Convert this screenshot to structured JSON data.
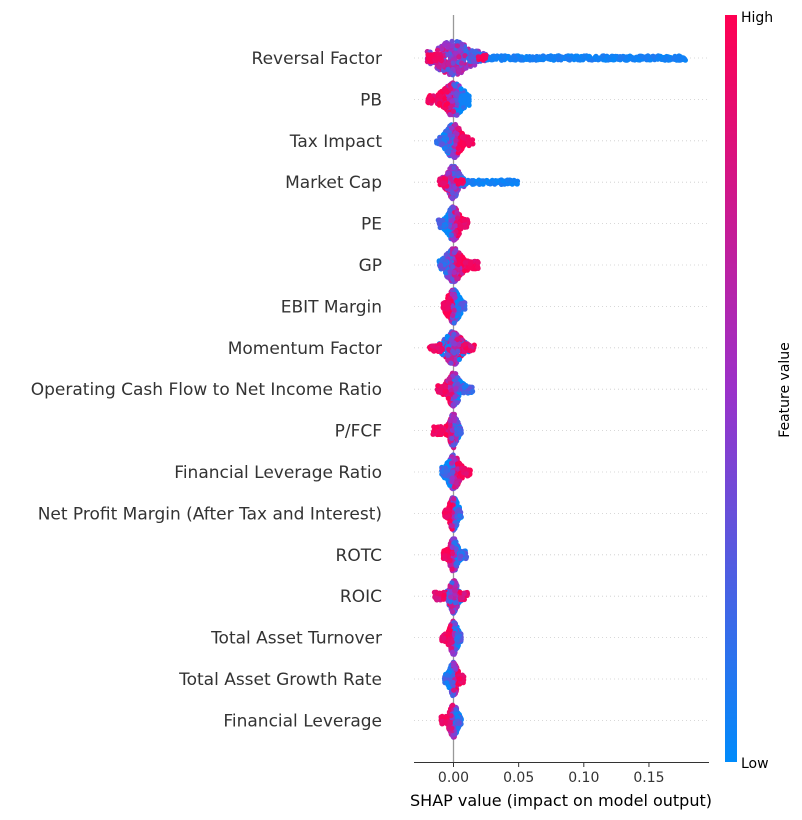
{
  "chart_data": {
    "type": "scatter",
    "subtype": "shap-beeswarm",
    "xlabel": "SHAP value (impact on model output)",
    "xlim": [
      -0.029,
      0.188
    ],
    "xticks": [
      0.0,
      0.05,
      0.1,
      0.15
    ],
    "xtick_labels": [
      "0.00",
      "0.05",
      "0.10",
      "0.15"
    ],
    "zero_line": true,
    "row_gridlines": "dotted",
    "colorbar": {
      "label": "Feature value",
      "high_label": "High",
      "low_label": "Low",
      "low_color": "#008bfb",
      "mid_color": "#9b31c9",
      "high_color": "#ff0052"
    },
    "features": [
      {
        "name": "Reversal Factor",
        "min": -0.02,
        "max": 0.178,
        "core_width": 0.018,
        "low_tail": [
          0.025,
          0.178
        ],
        "high_side": "left"
      },
      {
        "name": "PB",
        "min": -0.02,
        "max": 0.012,
        "core_width": 0.01,
        "low_tail": null,
        "high_side": "left"
      },
      {
        "name": "Tax Impact",
        "min": -0.013,
        "max": 0.015,
        "core_width": 0.008,
        "low_tail": null,
        "high_side": "right"
      },
      {
        "name": "Market Cap",
        "min": -0.011,
        "max": 0.051,
        "core_width": 0.006,
        "low_tail": [
          0.008,
          0.051
        ],
        "high_side": "left"
      },
      {
        "name": "PE",
        "min": -0.012,
        "max": 0.011,
        "core_width": 0.006,
        "low_tail": null,
        "high_side": "right"
      },
      {
        "name": "GP",
        "min": -0.011,
        "max": 0.019,
        "core_width": 0.008,
        "low_tail": null,
        "high_side": "right"
      },
      {
        "name": "EBIT Margin",
        "min": -0.008,
        "max": 0.009,
        "core_width": 0.006,
        "low_tail": null,
        "high_side": "left"
      },
      {
        "name": "Momentum Factor",
        "min": -0.019,
        "max": 0.016,
        "core_width": 0.008,
        "low_tail": null,
        "high_side": "both"
      },
      {
        "name": "Operating Cash Flow to Net Income Ratio",
        "min": -0.013,
        "max": 0.015,
        "core_width": 0.006,
        "low_tail": null,
        "high_side": "left"
      },
      {
        "name": "P/FCF",
        "min": -0.016,
        "max": 0.006,
        "core_width": 0.004,
        "low_tail": null,
        "high_side": "left"
      },
      {
        "name": "Financial Leverage Ratio",
        "min": -0.009,
        "max": 0.013,
        "core_width": 0.006,
        "low_tail": null,
        "high_side": "right"
      },
      {
        "name": "Net Profit Margin (After Tax and Interest)",
        "min": -0.007,
        "max": 0.006,
        "core_width": 0.004,
        "low_tail": null,
        "high_side": "left"
      },
      {
        "name": "ROTC",
        "min": -0.008,
        "max": 0.01,
        "core_width": 0.004,
        "low_tail": null,
        "high_side": "left"
      },
      {
        "name": "ROIC",
        "min": -0.015,
        "max": 0.011,
        "core_width": 0.004,
        "low_tail": null,
        "high_side": "both"
      },
      {
        "name": "Total Asset Turnover",
        "min": -0.009,
        "max": 0.006,
        "core_width": 0.004,
        "low_tail": null,
        "high_side": "left"
      },
      {
        "name": "Total Asset Growth Rate",
        "min": -0.007,
        "max": 0.008,
        "core_width": 0.004,
        "low_tail": null,
        "high_side": "right"
      },
      {
        "name": "Financial Leverage",
        "min": -0.01,
        "max": 0.006,
        "core_width": 0.004,
        "low_tail": null,
        "high_side": "left"
      }
    ]
  }
}
